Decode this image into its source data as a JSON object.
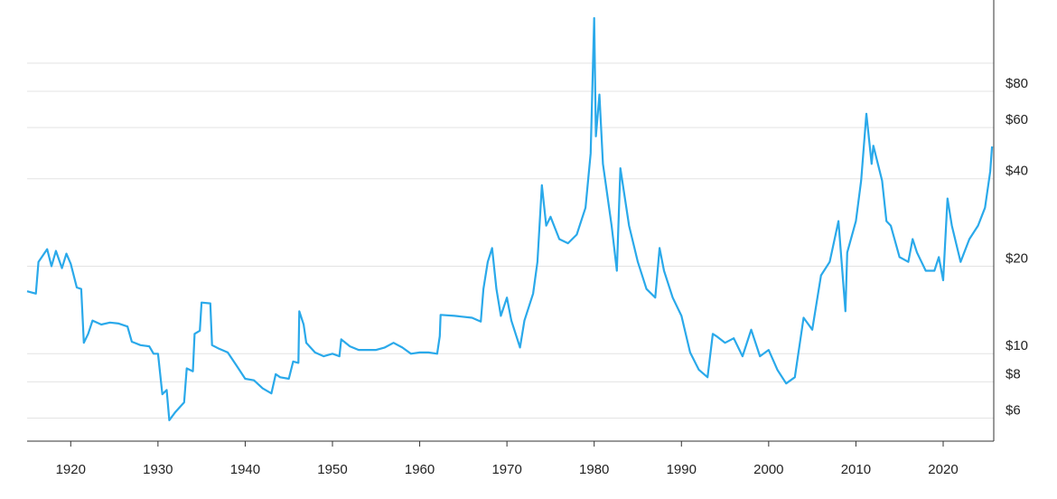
{
  "chart_data": {
    "type": "line",
    "log_y": true,
    "grid": true,
    "color": "#2aa9ea",
    "xlim": [
      1915,
      2025.8
    ],
    "xticks": [
      1920,
      1930,
      1940,
      1950,
      1960,
      1970,
      1980,
      1990,
      2000,
      2010,
      2020
    ],
    "ylim": [
      5,
      165
    ],
    "yticks": [
      {
        "value": 6,
        "label": "$6"
      },
      {
        "value": 8,
        "label": "$8"
      },
      {
        "value": 10,
        "label": "$10"
      },
      {
        "value": 20,
        "label": "$20"
      },
      {
        "value": 40,
        "label": "$40"
      },
      {
        "value": 60,
        "label": "$60"
      },
      {
        "value": 80,
        "label": "$80"
      },
      {
        "value": 100,
        "label": null
      }
    ],
    "x": [
      1915,
      1916,
      1916.3,
      1917.3,
      1917.8,
      1918.3,
      1919,
      1919.5,
      1920,
      1920.7,
      1921.2,
      1921.5,
      1922,
      1922.5,
      1923.5,
      1924.5,
      1925.5,
      1926.5,
      1927,
      1928,
      1929,
      1929.5,
      1930,
      1930.5,
      1931,
      1931.3,
      1932,
      1933,
      1933.3,
      1934,
      1934.2,
      1934.8,
      1935,
      1936,
      1936.2,
      1937,
      1938,
      1939,
      1940,
      1941,
      1942,
      1943,
      1943.5,
      1944,
      1945,
      1945.5,
      1946.1,
      1946.2,
      1946.7,
      1947,
      1948,
      1949,
      1950,
      1950.8,
      1951,
      1952,
      1953,
      1955,
      1956,
      1957,
      1958,
      1959,
      1960,
      1961,
      1962,
      1962.3,
      1962.4,
      1964,
      1966,
      1967,
      1967.3,
      1967.8,
      1968.3,
      1968.8,
      1969.3,
      1970,
      1970.5,
      1971.5,
      1972,
      1973,
      1973.5,
      1974,
      1974.5,
      1975,
      1976,
      1977,
      1978,
      1979,
      1979.6,
      1980,
      1980.2,
      1980.6,
      1981,
      1982,
      1982.6,
      1983,
      1984,
      1985,
      1986,
      1987,
      1987.5,
      1988,
      1989,
      1990,
      1991,
      1992,
      1993,
      1993.6,
      1994,
      1995,
      1996,
      1997,
      1998,
      1999,
      2000,
      2001,
      2002,
      2003,
      2004,
      2005,
      2006,
      2007,
      2008,
      2008.8,
      2009,
      2010,
      2010.6,
      2011.2,
      2011.8,
      2012,
      2013,
      2013.5,
      2014,
      2015,
      2016,
      2016.5,
      2017,
      2018,
      2019,
      2019.5,
      2020,
      2020.5,
      2021,
      2022,
      2023,
      2024,
      2024.8,
      2025.4,
      2025.6
    ],
    "values": [
      16.4,
      16.1,
      20.7,
      22.9,
      20.0,
      22.6,
      19.7,
      22.1,
      20.4,
      16.9,
      16.7,
      10.9,
      11.7,
      13.0,
      12.6,
      12.8,
      12.7,
      12.4,
      11.0,
      10.7,
      10.6,
      10.0,
      10.0,
      7.25,
      7.5,
      5.9,
      6.3,
      6.8,
      8.9,
      8.7,
      11.7,
      12.0,
      15.0,
      14.9,
      10.7,
      10.4,
      10.1,
      9.1,
      8.2,
      8.1,
      7.6,
      7.3,
      8.5,
      8.3,
      8.2,
      9.4,
      9.3,
      14.0,
      12.6,
      10.9,
      10.1,
      9.8,
      10.0,
      9.8,
      11.2,
      10.6,
      10.3,
      10.3,
      10.5,
      10.9,
      10.5,
      10.0,
      10.1,
      10.1,
      10.0,
      11.5,
      13.6,
      13.5,
      13.3,
      12.9,
      16.7,
      20.7,
      23.1,
      16.7,
      13.5,
      15.6,
      13.0,
      10.5,
      13.0,
      16.1,
      20.7,
      38,
      27.6,
      29.6,
      24.8,
      24,
      25.7,
      31.8,
      48.9,
      143,
      56,
      78,
      45,
      27.6,
      19.3,
      43.5,
      27.6,
      20.7,
      16.7,
      15.6,
      23.1,
      19.3,
      15.6,
      13.5,
      10.1,
      8.8,
      8.3,
      11.7,
      11.5,
      10.9,
      11.3,
      9.8,
      12.1,
      9.8,
      10.3,
      8.8,
      7.9,
      8.3,
      13.3,
      12.1,
      18.6,
      20.7,
      28.6,
      14.0,
      22.3,
      28.6,
      39.4,
      67,
      45,
      52,
      39.4,
      28.6,
      27.6,
      21.5,
      20.7,
      24.8,
      22.3,
      19.3,
      19.3,
      21.5,
      17.9,
      34.2,
      27.6,
      20.7,
      24.8,
      27.6,
      31.8,
      42.4,
      51.7
    ]
  }
}
